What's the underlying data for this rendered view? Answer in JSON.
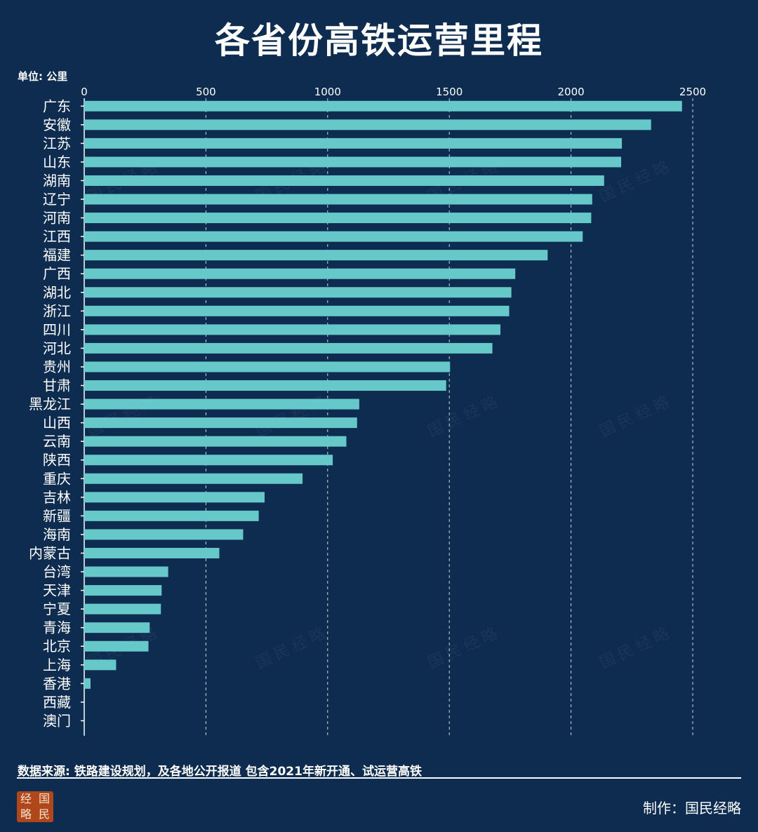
{
  "title": "各省份高铁运营里程",
  "unit_label": "单位: 公里",
  "source": "数据来源: 铁路建设规划，及各地公开报道 包含2021年新开通、试运营高铁",
  "credit": "制作：国民经略",
  "logo": {
    "chars": [
      "经",
      "国",
      "略",
      "民"
    ]
  },
  "watermark": "国民经略",
  "colors": {
    "background": "#0d2c4f",
    "bar": "#66c8c8",
    "text": "#ffffff"
  },
  "chart_data": {
    "type": "bar",
    "orientation": "horizontal",
    "xlim": [
      0,
      2500
    ],
    "ticks": [
      0,
      500,
      1000,
      1500,
      2000,
      2500
    ],
    "grid": "vertical dashed",
    "categories": [
      "广东",
      "安徽",
      "江苏",
      "山东",
      "湖南",
      "辽宁",
      "河南",
      "江西",
      "福建",
      "广西",
      "湖北",
      "浙江",
      "四川",
      "河北",
      "贵州",
      "甘肃",
      "黑龙江",
      "山西",
      "云南",
      "陕西",
      "重庆",
      "吉林",
      "新疆",
      "海南",
      "内蒙古",
      "台湾",
      "天津",
      "宁夏",
      "青海",
      "北京",
      "上海",
      "香港",
      "西藏",
      "澳门"
    ],
    "values": [
      2456,
      2329,
      2209,
      2206,
      2136,
      2087,
      2083,
      2048,
      1904,
      1771,
      1755,
      1746,
      1710,
      1677,
      1503,
      1487,
      1130,
      1121,
      1077,
      1021,
      897,
      741,
      717,
      653,
      555,
      345,
      318,
      315,
      269,
      264,
      131,
      26,
      0,
      0
    ]
  }
}
